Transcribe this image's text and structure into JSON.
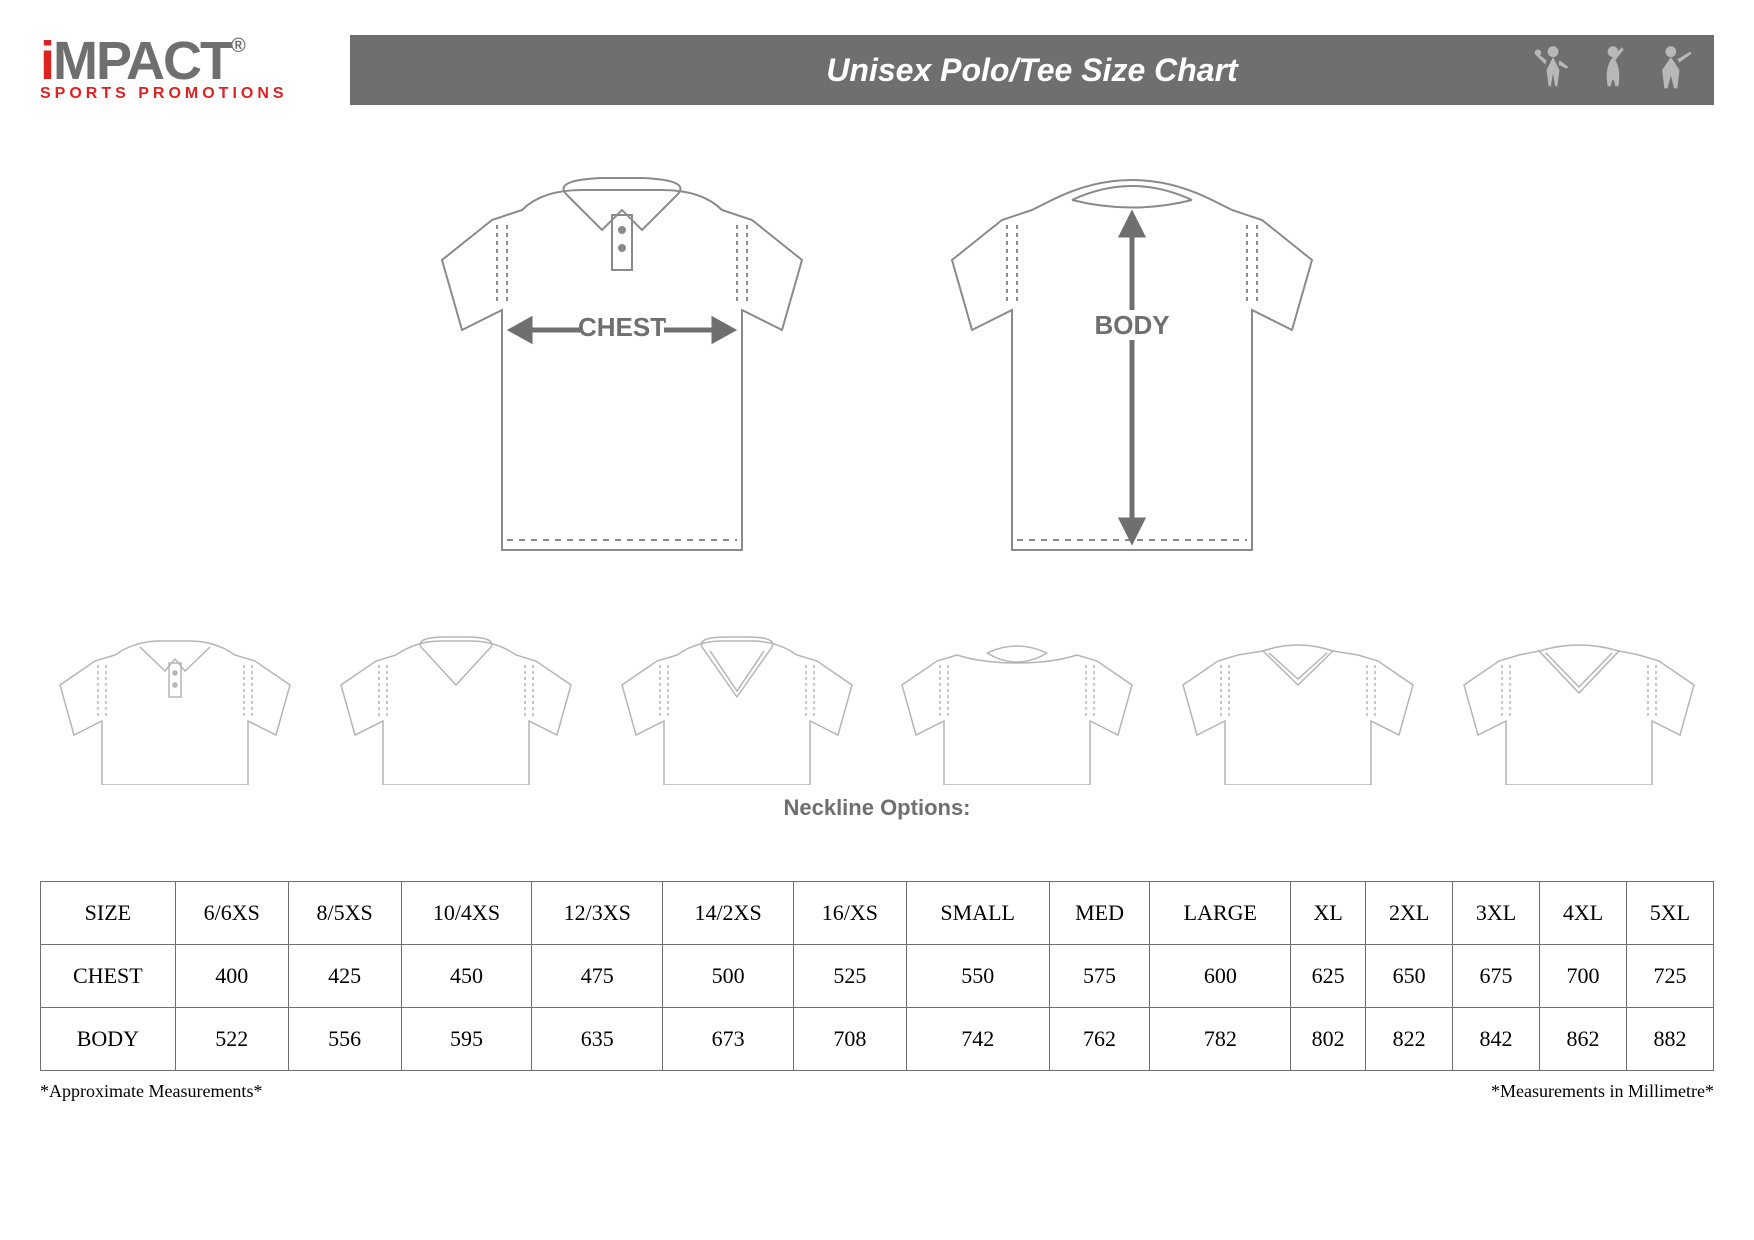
{
  "header": {
    "logo_main": "iMPACT",
    "logo_sub": "SPORTS PROMOTIONS",
    "title": "Unisex Polo/Tee Size Chart"
  },
  "diagrams": {
    "chest_label": "CHEST",
    "body_label": "BODY",
    "line_color": "#8a8a8a",
    "label_color": "#6f6f6f"
  },
  "neckline_label": "Neckline Options:",
  "size_table": {
    "columns": [
      "SIZE",
      "6/6XS",
      "8/5XS",
      "10/4XS",
      "12/3XS",
      "14/2XS",
      "16/XS",
      "SMALL",
      "MED",
      "LARGE",
      "XL",
      "2XL",
      "3XL",
      "4XL",
      "5XL"
    ],
    "rows": [
      [
        "CHEST",
        "400",
        "425",
        "450",
        "475",
        "500",
        "525",
        "550",
        "575",
        "600",
        "625",
        "650",
        "675",
        "700",
        "725"
      ],
      [
        "BODY",
        "522",
        "556",
        "595",
        "635",
        "673",
        "708",
        "742",
        "762",
        "782",
        "802",
        "822",
        "842",
        "862",
        "882"
      ]
    ],
    "border_color": "#6f6f6f"
  },
  "footnotes": {
    "left": "*Approximate Measurements*",
    "right": "*Measurements in Millimetre*"
  },
  "colors": {
    "bar_bg": "#6f6f6f",
    "accent": "#d22222"
  }
}
